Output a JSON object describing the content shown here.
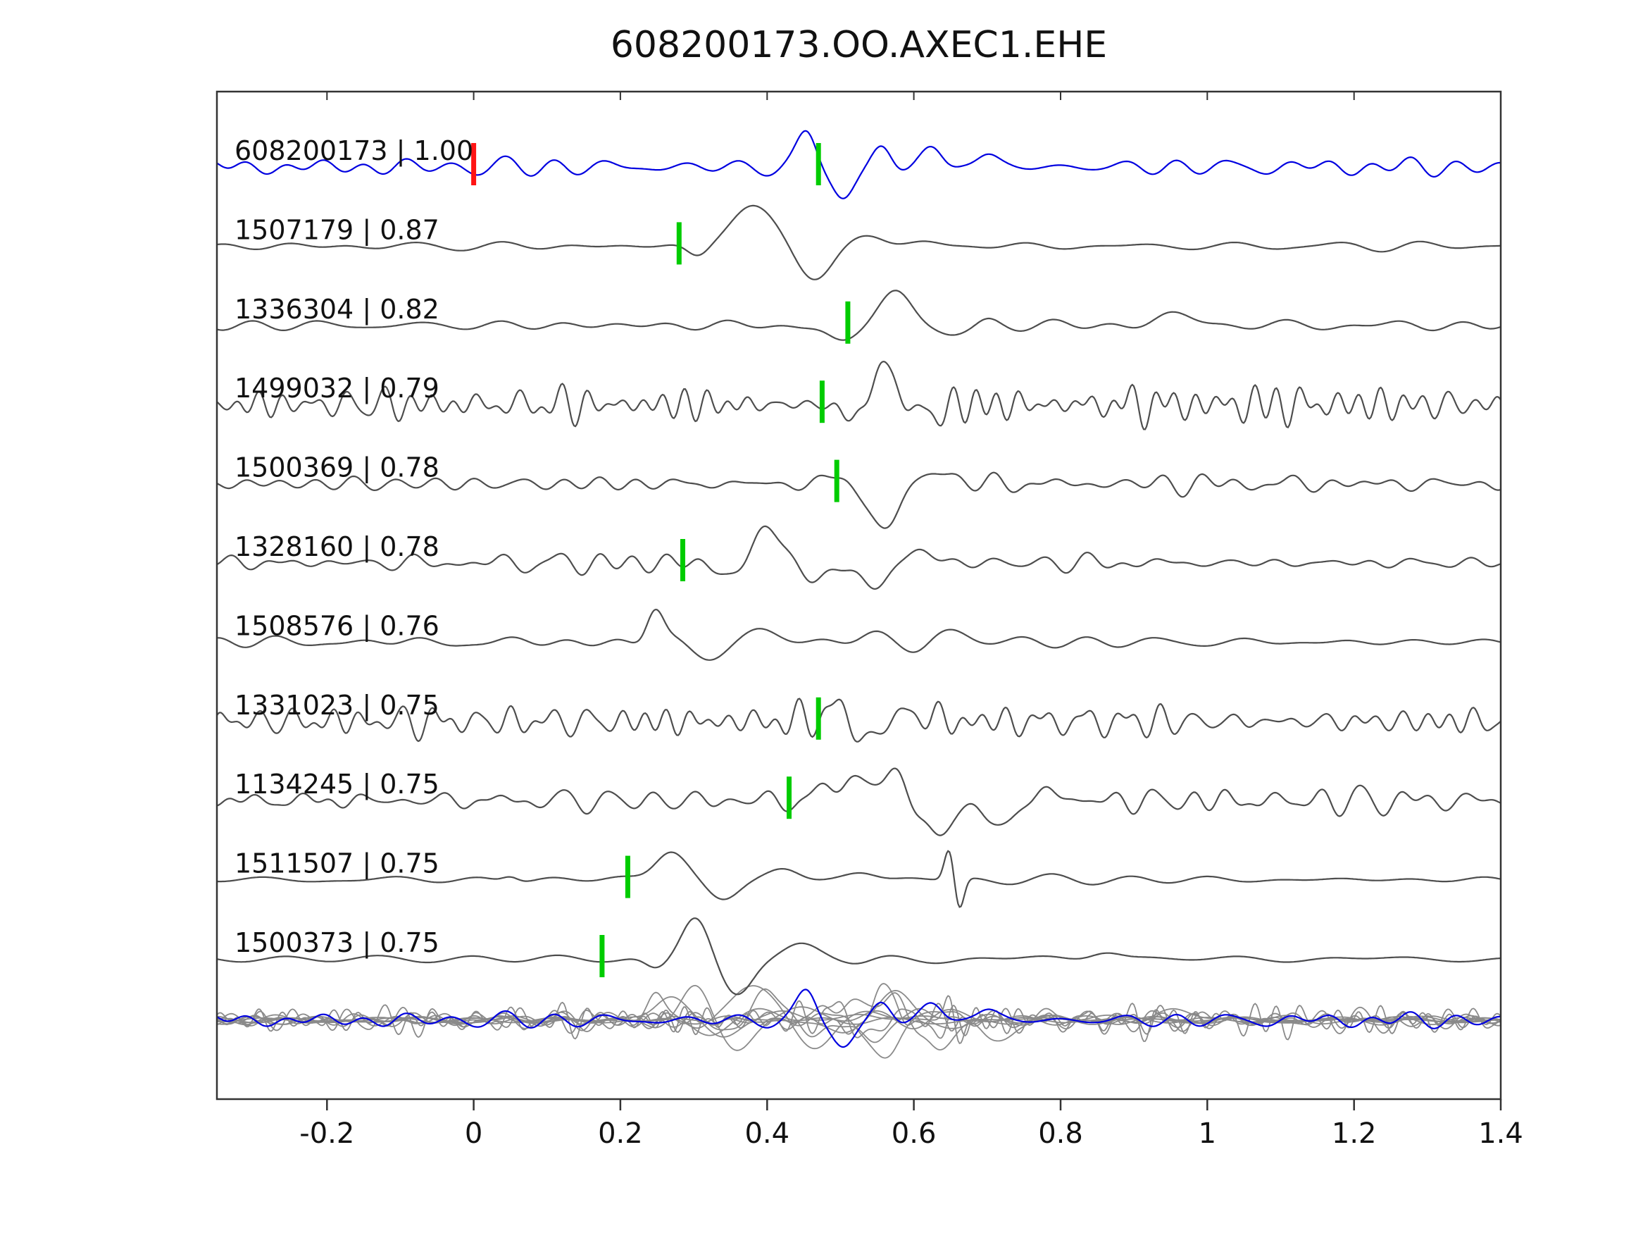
{
  "title": "608200173.OO.AXEC1.EHE",
  "chart_data": {
    "type": "line",
    "title": "608200173.OO.AXEC1.EHE",
    "description": "Stacked seismic waveform traces: reference event (blue) and matched template events (gray) with correlation coefficients; green ticks mark picks, red tick marks reference pick; bottom row overlays all traces.",
    "xlim": [
      -0.35,
      1.4
    ],
    "xticks": [
      -0.2,
      0,
      0.2,
      0.4,
      0.6,
      0.8,
      1,
      1.2,
      1.4
    ],
    "xtick_labels": [
      "-0.2",
      "0",
      "0.2",
      "0.4",
      "0.6",
      "0.8",
      "1",
      "1.2",
      "1.4"
    ],
    "grid": false,
    "legend": "none",
    "colors": {
      "reference_trace": "#0000e0",
      "match_trace": "#4d4d4d",
      "overlay_trace": "#8a8a8a",
      "pick_marker_green": "#00cc00",
      "pick_marker_red": "#ff1414",
      "frame": "#333333",
      "text": "#111111"
    },
    "series": [
      {
        "id": "608200173",
        "label": "608200173 | 1.00",
        "correlation": 1.0,
        "role": "reference",
        "color": "#0000e0",
        "picks": [
          {
            "x": 0.0,
            "color": "#ff1414"
          },
          {
            "x": 0.47,
            "color": "#00cc00"
          }
        ],
        "waveform": {
          "seed": 8121,
          "f1": 7,
          "f2": 20,
          "noise_amp": 13,
          "bumps": [
            [
              0.455,
              46,
              0.018
            ],
            [
              0.503,
              -44,
              0.02
            ],
            [
              0.557,
              24,
              0.018
            ],
            [
              0.627,
              26,
              0.02
            ],
            [
              0.7,
              18,
              0.02
            ]
          ]
        }
      },
      {
        "id": "1507179",
        "label": "1507179 | 0.87",
        "correlation": 0.87,
        "role": "match",
        "color": "#4d4d4d",
        "picks": [
          {
            "x": 0.28,
            "color": "#00cc00"
          }
        ],
        "waveform": {
          "seed": 4417,
          "f1": 5,
          "f2": 13,
          "noise_amp": 7,
          "bumps": [
            [
              0.305,
              -16,
              0.02
            ],
            [
              0.378,
              57,
              0.042
            ],
            [
              0.462,
              -40,
              0.035
            ],
            [
              0.545,
              13,
              0.03
            ],
            [
              0.62,
              6,
              0.03
            ]
          ]
        }
      },
      {
        "id": "1336304",
        "label": "1336304 | 0.82",
        "correlation": 0.82,
        "role": "match",
        "color": "#4d4d4d",
        "picks": [
          {
            "x": 0.51,
            "color": "#00cc00"
          }
        ],
        "waveform": {
          "seed": 9931,
          "f1": 5,
          "f2": 14,
          "noise_amp": 8,
          "bumps": [
            [
              0.5,
              -24,
              0.028
            ],
            [
              0.578,
              50,
              0.032
            ],
            [
              0.648,
              -18,
              0.03
            ],
            [
              0.7,
              8,
              0.02
            ],
            [
              0.96,
              14,
              0.04
            ]
          ]
        }
      },
      {
        "id": "1499032",
        "label": "1499032 | 0.79",
        "correlation": 0.79,
        "role": "match",
        "color": "#4d4d4d",
        "picks": [
          {
            "x": 0.475,
            "color": "#00cc00"
          }
        ],
        "waveform": {
          "seed": 2718,
          "f1": 14,
          "f2": 38,
          "noise_amp": 25,
          "bumps": [
            [
              0.52,
              -28,
              0.02
            ],
            [
              0.556,
              52,
              0.026
            ],
            [
              0.62,
              -18,
              0.02
            ]
          ]
        }
      },
      {
        "id": "1500369",
        "label": "1500369 | 0.78",
        "correlation": 0.78,
        "role": "match",
        "color": "#4d4d4d",
        "picks": [
          {
            "x": 0.495,
            "color": "#00cc00"
          }
        ],
        "waveform": {
          "seed": 5150,
          "f1": 9,
          "f2": 26,
          "noise_amp": 12,
          "bumps": [
            [
              0.505,
              18,
              0.02
            ],
            [
              0.558,
              -58,
              0.036
            ],
            [
              0.625,
              22,
              0.03
            ]
          ]
        }
      },
      {
        "id": "1328160",
        "label": "1328160 | 0.78",
        "correlation": 0.78,
        "role": "match",
        "color": "#4d4d4d",
        "picks": [
          {
            "x": 0.285,
            "color": "#00cc00"
          }
        ],
        "waveform": {
          "seed": 6061,
          "f1": 8,
          "f2": 24,
          "noise_amp": 12,
          "bumps": [
            [
              0.35,
              -18,
              0.02
            ],
            [
              0.405,
              48,
              0.028
            ],
            [
              0.468,
              -30,
              0.024
            ],
            [
              0.55,
              -34,
              0.028
            ],
            [
              0.605,
              18,
              0.03
            ]
          ]
        }
      },
      {
        "id": "1508576",
        "label": "1508576 | 0.76",
        "correlation": 0.76,
        "role": "match",
        "color": "#4d4d4d",
        "picks": [],
        "waveform": {
          "seed": 7272,
          "f1": 5,
          "f2": 15,
          "noise_amp": 8,
          "bumps": [
            [
              0.247,
              46,
              0.016
            ],
            [
              0.33,
              -24,
              0.03
            ],
            [
              0.385,
              22,
              0.03
            ],
            [
              0.55,
              14,
              0.03
            ],
            [
              0.605,
              -16,
              0.025
            ],
            [
              0.655,
              18,
              0.03
            ]
          ]
        }
      },
      {
        "id": "1331023",
        "label": "1331023 | 0.75",
        "correlation": 0.75,
        "role": "match",
        "color": "#4d4d4d",
        "picks": [
          {
            "x": 0.47,
            "color": "#00cc00"
          }
        ],
        "waveform": {
          "seed": 1834,
          "f1": 14,
          "f2": 38,
          "noise_amp": 23,
          "bumps": [
            [
              0.49,
              22,
              0.02
            ],
            [
              0.535,
              -26,
              0.02
            ],
            [
              0.6,
              15,
              0.02
            ]
          ]
        }
      },
      {
        "id": "1134245",
        "label": "1134245 | 0.75",
        "correlation": 0.75,
        "role": "match",
        "color": "#4d4d4d",
        "picks": [
          {
            "x": 0.43,
            "color": "#00cc00"
          }
        ],
        "waveform": {
          "seed": 3945,
          "f1": 11,
          "f2": 30,
          "noise_amp": 17,
          "bumps": [
            [
              0.505,
              32,
              0.03
            ],
            [
              0.568,
              42,
              0.026
            ],
            [
              0.632,
              -48,
              0.03
            ],
            [
              0.72,
              -34,
              0.03
            ],
            [
              0.78,
              18,
              0.02
            ]
          ]
        }
      },
      {
        "id": "1511507",
        "label": "1511507 | 0.75",
        "correlation": 0.75,
        "role": "match",
        "color": "#4d4d4d",
        "picks": [
          {
            "x": 0.21,
            "color": "#00cc00"
          }
        ],
        "waveform": {
          "seed": 8856,
          "f1": 4,
          "f2": 11,
          "noise_amp": 6,
          "bumps": [
            [
              0.05,
              8,
              0.015
            ],
            [
              0.268,
              44,
              0.03
            ],
            [
              0.338,
              -28,
              0.03
            ],
            [
              0.425,
              14,
              0.03
            ],
            [
              0.53,
              11,
              0.03
            ],
            [
              0.648,
              44,
              0.009
            ],
            [
              0.662,
              -44,
              0.009
            ]
          ]
        }
      },
      {
        "id": "1500373",
        "label": "1500373 | 0.75",
        "correlation": 0.75,
        "role": "match",
        "color": "#4d4d4d",
        "picks": [
          {
            "x": 0.175,
            "color": "#00cc00"
          }
        ],
        "waveform": {
          "seed": 9242,
          "f1": 4,
          "f2": 11,
          "noise_amp": 6,
          "bumps": [
            [
              0.248,
              -14,
              0.02
            ],
            [
              0.302,
              60,
              0.026
            ],
            [
              0.358,
              -54,
              0.03
            ],
            [
              0.445,
              24,
              0.036
            ],
            [
              0.525,
              -8,
              0.03
            ],
            [
              0.86,
              12,
              0.03
            ]
          ]
        }
      }
    ],
    "overlay_row": {
      "description": "all traces overlaid at bottom; matches in light gray, reference in blue on top",
      "gray": "#8a8a8a",
      "amp_scale": 0.85
    }
  }
}
